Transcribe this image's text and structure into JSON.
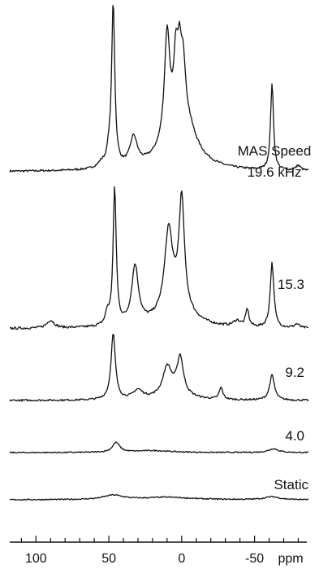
{
  "chart_data": {
    "type": "line",
    "xlabel": "ppm",
    "x_reversed": true,
    "xlim": [
      118,
      -87
    ],
    "x_ticks": [
      {
        "value": 100,
        "label": "100"
      },
      {
        "value": 50,
        "label": "50"
      },
      {
        "value": 0,
        "label": "0"
      },
      {
        "value": -50,
        "label": "-50"
      }
    ],
    "series": [
      {
        "name": "MAS Speed 19.6 kHz",
        "label_lines": [
          "MAS Speed",
          "19.6 kHz"
        ],
        "peaks": [
          {
            "x": 55,
            "h": 0.03,
            "w": 3
          },
          {
            "x": 50,
            "h": 0.07,
            "w": 1.5
          },
          {
            "x": 47,
            "h": 0.98,
            "w": 1.3
          },
          {
            "x": 33,
            "h": 0.17,
            "w": 3
          },
          {
            "x": 10,
            "h": 0.63,
            "w": 2.2
          },
          {
            "x": 4,
            "h": 0.35,
            "w": 1.6
          },
          {
            "x": 1.5,
            "h": 0.32,
            "w": 1.6
          },
          {
            "x": -1,
            "h": 0.3,
            "w": 1.8
          },
          {
            "x": 3,
            "h": 0.22,
            "w": 12
          },
          {
            "x": -3,
            "h": 0.15,
            "w": 8
          },
          {
            "x": -62,
            "h": 0.52,
            "w": 1.2
          },
          {
            "x": -80,
            "h": 0.03,
            "w": 2
          }
        ]
      },
      {
        "name": "15.3",
        "label_lines": [
          "15.3"
        ],
        "peaks": [
          {
            "x": 90,
            "h": 0.04,
            "w": 3
          },
          {
            "x": 51,
            "h": 0.06,
            "w": 1.5
          },
          {
            "x": 46,
            "h": 0.7,
            "w": 1.3
          },
          {
            "x": 32,
            "h": 0.3,
            "w": 2.8
          },
          {
            "x": 9,
            "h": 0.4,
            "w": 3.2
          },
          {
            "x": 0,
            "h": 0.55,
            "w": 2.2
          },
          {
            "x": 4,
            "h": 0.12,
            "w": 12
          },
          {
            "x": -45,
            "h": 0.09,
            "w": 1.3
          },
          {
            "x": -62,
            "h": 0.33,
            "w": 1.5
          },
          {
            "x": -38,
            "h": 0.03,
            "w": 3
          },
          {
            "x": -79,
            "h": 0.02,
            "w": 2
          }
        ]
      },
      {
        "name": "9.2",
        "label_lines": [
          "9.2"
        ],
        "peaks": [
          {
            "x": 47,
            "h": 0.45,
            "w": 1.8
          },
          {
            "x": 30,
            "h": 0.06,
            "w": 4
          },
          {
            "x": 10,
            "h": 0.18,
            "w": 3.5
          },
          {
            "x": 1,
            "h": 0.24,
            "w": 2.5
          },
          {
            "x": 5,
            "h": 0.06,
            "w": 10
          },
          {
            "x": -27,
            "h": 0.08,
            "w": 1.5
          },
          {
            "x": -62,
            "h": 0.17,
            "w": 2
          }
        ]
      },
      {
        "name": "4.0",
        "label_lines": [
          "4.0"
        ],
        "peaks": [
          {
            "x": 45,
            "h": 0.1,
            "w": 3
          },
          {
            "x": 20,
            "h": 0.02,
            "w": 15
          },
          {
            "x": -63,
            "h": 0.04,
            "w": 4
          }
        ]
      },
      {
        "name": "Static",
        "label_lines": [
          "Static"
        ],
        "peaks": [
          {
            "x": 47,
            "h": 0.045,
            "w": 8
          },
          {
            "x": 10,
            "h": 0.025,
            "w": 20
          },
          {
            "x": -62,
            "h": 0.03,
            "w": 6
          }
        ]
      }
    ],
    "line_color": "#111111"
  }
}
